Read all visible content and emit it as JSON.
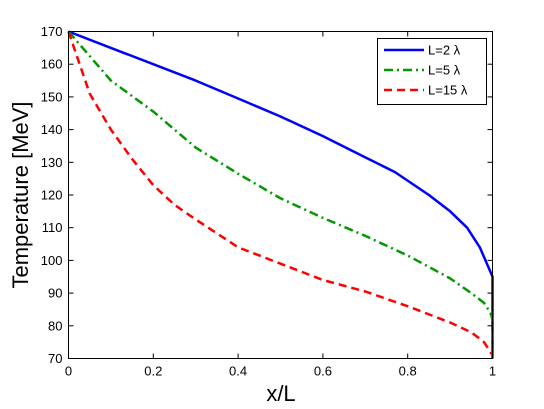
{
  "chart_data": {
    "type": "line",
    "title": "",
    "xlabel": "x/L",
    "ylabel": "Temperature [MeV]",
    "xlim": [
      0,
      1
    ],
    "ylim": [
      70,
      170
    ],
    "xticks": [
      0,
      0.2,
      0.4,
      0.6,
      0.8,
      1
    ],
    "xtick_labels": [
      "0",
      "0.2",
      "0.4",
      "0.6",
      "0.8",
      "1"
    ],
    "yticks": [
      70,
      80,
      90,
      100,
      110,
      120,
      130,
      140,
      150,
      160,
      170
    ],
    "ytick_labels": [
      "70",
      "80",
      "90",
      "100",
      "110",
      "120",
      "130",
      "140",
      "150",
      "160",
      "170"
    ],
    "grid": false,
    "legend_position": "top-right",
    "series": [
      {
        "name": "L=2 λ",
        "color": "#0000ff",
        "style": "solid",
        "x": [
          0,
          0.1,
          0.2,
          0.3,
          0.4,
          0.5,
          0.6,
          0.7,
          0.77,
          0.85,
          0.9,
          0.94,
          0.97,
          0.99,
          1,
          1
        ],
        "y": [
          170,
          165,
          160,
          155,
          149.5,
          144,
          138,
          131.5,
          127,
          120,
          115,
          110,
          104,
          98,
          95,
          70
        ]
      },
      {
        "name": "L=5 λ",
        "color": "#009900",
        "style": "dashdot",
        "x": [
          0,
          0.1,
          0.2,
          0.3,
          0.4,
          0.5,
          0.6,
          0.7,
          0.8,
          0.85,
          0.9,
          0.95,
          0.98,
          0.995,
          1,
          1
        ],
        "y": [
          170,
          155,
          145.5,
          134.5,
          126.5,
          119,
          113,
          107.5,
          101.5,
          98,
          94.5,
          90,
          87,
          84,
          82,
          70
        ]
      },
      {
        "name": "L=15 λ",
        "color": "#ff0000",
        "style": "dashed",
        "x": [
          0,
          0.05,
          0.1,
          0.15,
          0.2,
          0.25,
          0.3,
          0.4,
          0.5,
          0.6,
          0.7,
          0.8,
          0.9,
          0.95,
          0.98,
          1
        ],
        "y": [
          170,
          151,
          140,
          131,
          123,
          117,
          112.5,
          104,
          99,
          94,
          90.5,
          86,
          81,
          78,
          75,
          71
        ]
      }
    ]
  }
}
